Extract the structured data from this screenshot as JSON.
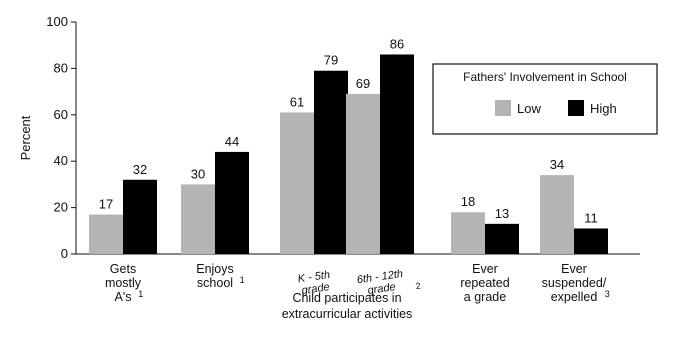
{
  "chart_data": {
    "type": "bar",
    "ylabel": "Percent",
    "ylim": [
      0,
      100
    ],
    "yticks": [
      "0",
      "20",
      "40",
      "60",
      "80",
      "100"
    ],
    "grid": false,
    "legend": {
      "title": "Fathers' Involvement in School",
      "placement": "top-right",
      "entries": [
        "Low",
        "High"
      ]
    },
    "series": [
      {
        "name": "Low",
        "color": "#b4b4b4",
        "values": [
          17,
          30,
          61,
          69,
          18,
          34
        ]
      },
      {
        "name": "High",
        "color": "#000000",
        "values": [
          32,
          44,
          79,
          86,
          13,
          11
        ]
      }
    ],
    "categories": [
      {
        "lines": [
          "Gets",
          "mostly",
          "A's"
        ],
        "note": "1"
      },
      {
        "lines": [
          "Enjoys",
          "school"
        ],
        "note": "1"
      },
      {
        "lines": [
          "K - 5th",
          "grade"
        ],
        "note": ""
      },
      {
        "lines": [
          "6th - 12th",
          "grade"
        ],
        "note": "2"
      },
      {
        "lines": [
          "Ever",
          "repeated",
          "a grade"
        ],
        "note": ""
      },
      {
        "lines": [
          "Ever",
          "suspended/",
          "expelled"
        ],
        "note": "3"
      }
    ],
    "group_label": [
      "Child participates in",
      "extracurricular activities"
    ]
  }
}
